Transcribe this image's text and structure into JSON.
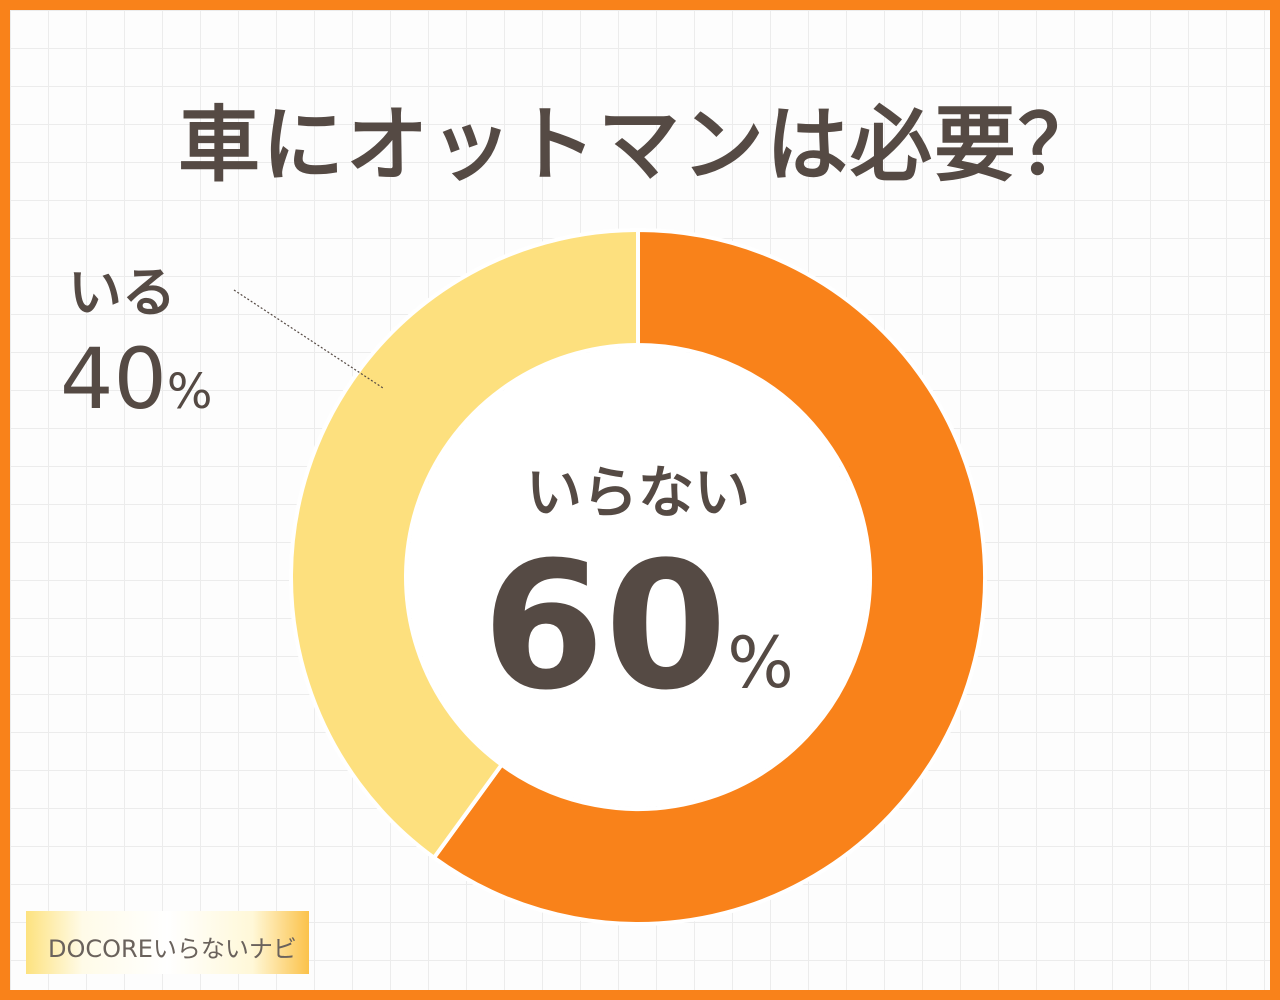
{
  "title": "車にオットマンは必要？",
  "chart_data": {
    "type": "pie",
    "donut": true,
    "categories": [
      "いらない",
      "いる"
    ],
    "values": [
      60,
      40
    ],
    "unit": "%",
    "colors": [
      "#f9821a",
      "#fde07e"
    ],
    "start": "top",
    "direction": "clockwise"
  },
  "labels": {
    "yes_label": "いる",
    "yes_value": "40",
    "no_label": "いらない",
    "no_value": "60",
    "unit": "%"
  },
  "logo": "DOCOREいらないナビ",
  "colors": {
    "border": "#f9821a",
    "text": "#554a44"
  }
}
